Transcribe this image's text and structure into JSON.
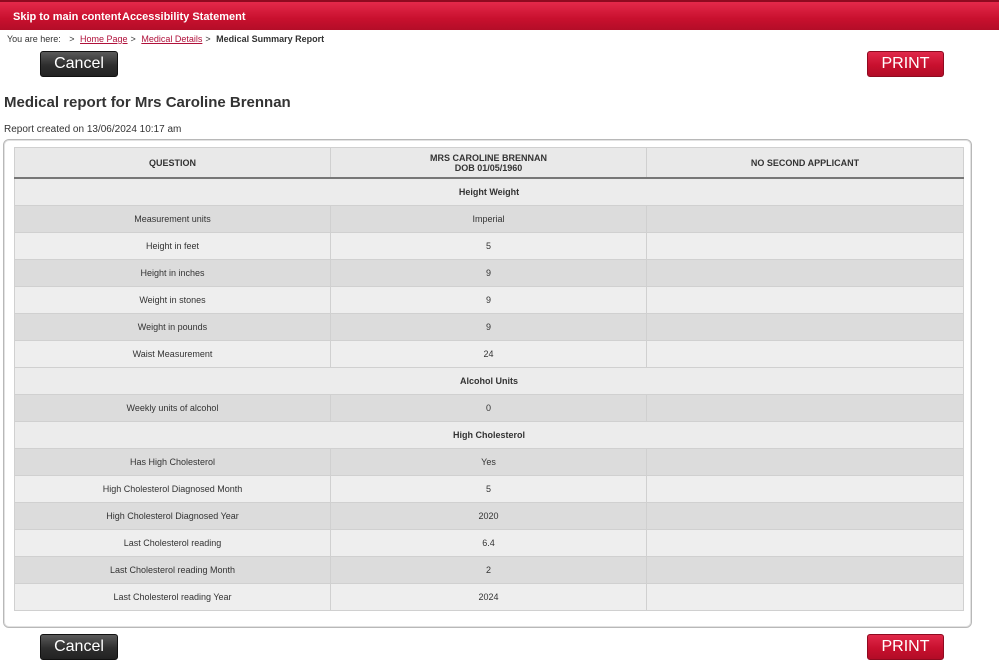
{
  "topbar": {
    "skip_link": "Skip to main content",
    "accessibility_link": "Accessibility Statement"
  },
  "breadcrumb": {
    "prefix": "You are here:",
    "items": [
      "Home Page",
      "Medical Details"
    ],
    "current": "Medical Summary Report"
  },
  "buttons": {
    "cancel": "Cancel",
    "print": "PRINT"
  },
  "page": {
    "title": "Medical report for Mrs Caroline Brennan",
    "created": "Report created on 13/06/2024 10:17 am"
  },
  "table": {
    "headers": {
      "question": "QUESTION",
      "applicant_name": "MRS CAROLINE BRENNAN",
      "applicant_dob": "DOB 01/05/1960",
      "second": "NO SECOND APPLICANT"
    },
    "rows": [
      {
        "section": "Height Weight"
      },
      {
        "question": "Measurement units",
        "answer": "Imperial",
        "second": ""
      },
      {
        "question": "Height in feet",
        "answer": "5",
        "second": ""
      },
      {
        "question": "Height in inches",
        "answer": "9",
        "second": ""
      },
      {
        "question": "Weight in stones",
        "answer": "9",
        "second": ""
      },
      {
        "question": "Weight in pounds",
        "answer": "9",
        "second": ""
      },
      {
        "question": "Waist Measurement",
        "answer": "24",
        "second": ""
      },
      {
        "section": "Alcohol Units"
      },
      {
        "question": "Weekly units of alcohol",
        "answer": "0",
        "second": ""
      },
      {
        "section": "High Cholesterol"
      },
      {
        "question": "Has High Cholesterol",
        "answer": "Yes",
        "second": ""
      },
      {
        "question": "High Cholesterol Diagnosed Month",
        "answer": "5",
        "second": ""
      },
      {
        "question": "High Cholesterol Diagnosed Year",
        "answer": "2020",
        "second": ""
      },
      {
        "question": "Last Cholesterol reading",
        "answer": "6.4",
        "second": ""
      },
      {
        "question": "Last Cholesterol reading Month",
        "answer": "2",
        "second": ""
      },
      {
        "question": "Last Cholesterol reading Year",
        "answer": "2024",
        "second": ""
      }
    ]
  }
}
